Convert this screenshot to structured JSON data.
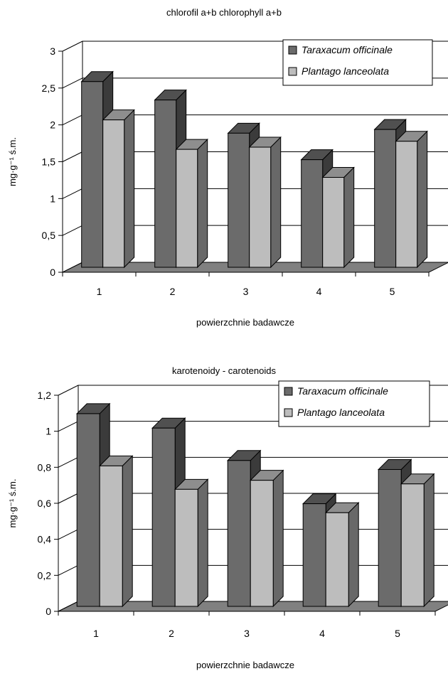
{
  "chart_data": [
    {
      "type": "bar",
      "title": "chlorofil a+b    chlorophyll a+b",
      "xlabel": "powierzchnie badawcze",
      "ylabel": "mg·g⁻¹ ś.m.",
      "categories": [
        "1",
        "2",
        "3",
        "4",
        "5"
      ],
      "yticks": [
        "0",
        "0,5",
        "1",
        "1,5",
        "2",
        "2,5",
        "3"
      ],
      "ylim": [
        0,
        3
      ],
      "grid": true,
      "legend_position": "top-right",
      "series": [
        {
          "name": "Taraxacum officinale",
          "values": [
            2.52,
            2.27,
            1.82,
            1.46,
            1.87
          ],
          "color": "#6b6b6b"
        },
        {
          "name": "Plantago lanceolata",
          "values": [
            2.0,
            1.6,
            1.63,
            1.22,
            1.71
          ],
          "color": "#bdbdbd"
        }
      ]
    },
    {
      "type": "bar",
      "title": "karotenoidy - carotenoids",
      "xlabel": "powierzchnie badawcze",
      "ylabel": "mg·g⁻¹ ś.m.",
      "categories": [
        "1",
        "2",
        "3",
        "4",
        "5"
      ],
      "yticks": [
        "0",
        "0,2",
        "0,4",
        "0,6",
        "0,8",
        "1",
        "1,2"
      ],
      "ylim": [
        0,
        1.2
      ],
      "grid": true,
      "legend_position": "top-right",
      "series": [
        {
          "name": "Taraxacum officinale",
          "values": [
            1.07,
            0.99,
            0.81,
            0.57,
            0.76
          ],
          "color": "#6b6b6b"
        },
        {
          "name": "Plantago lanceolata",
          "values": [
            0.78,
            0.65,
            0.7,
            0.52,
            0.68
          ],
          "color": "#bdbdbd"
        }
      ]
    }
  ]
}
